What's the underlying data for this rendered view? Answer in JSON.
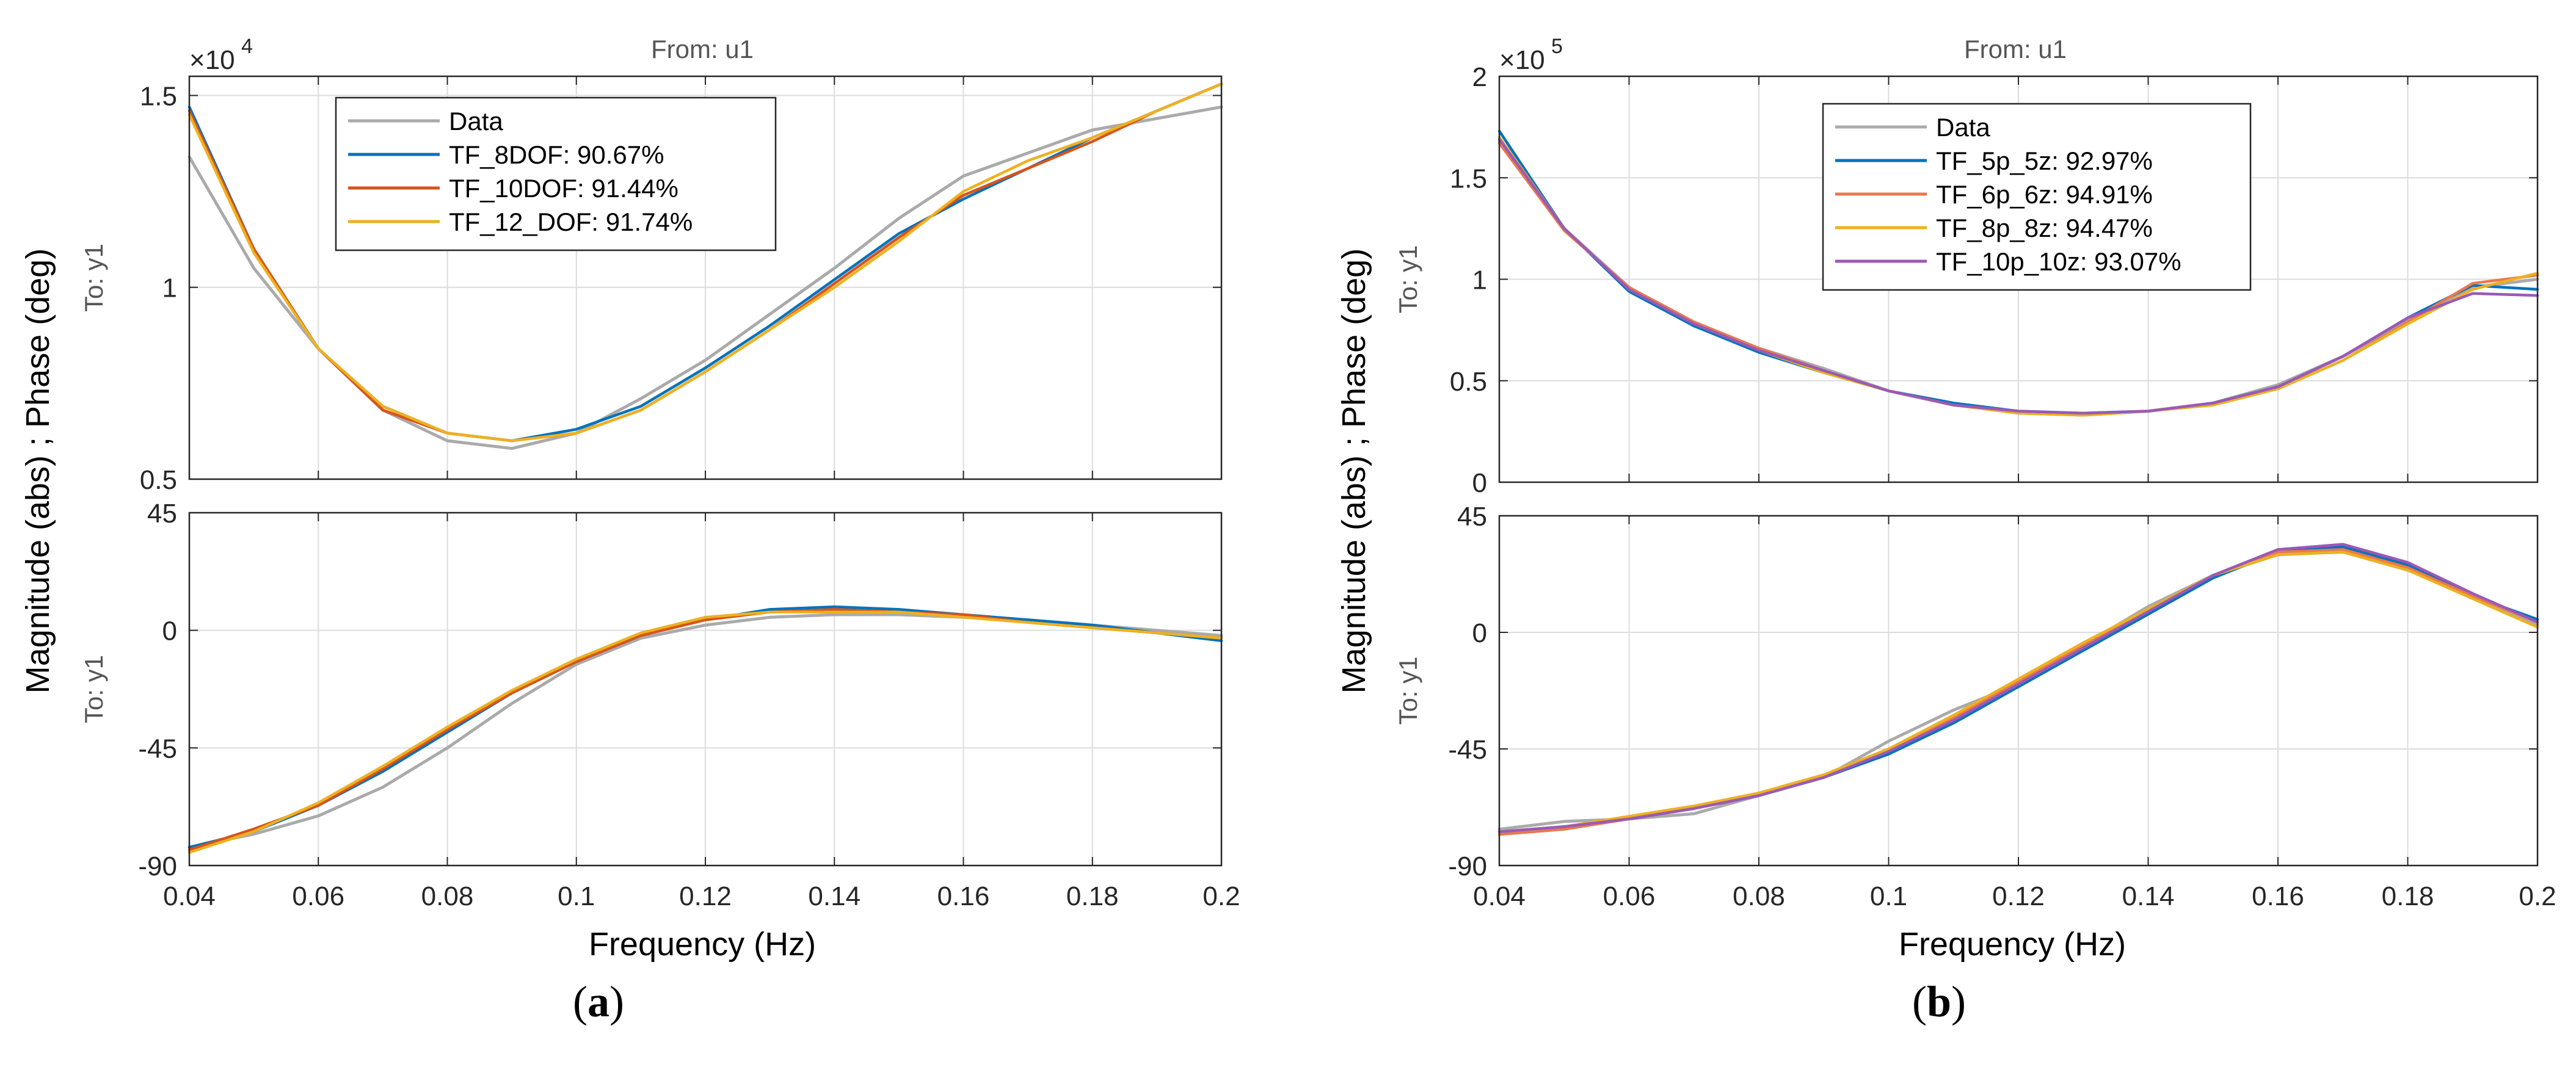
{
  "chart_data": [
    {
      "type": "line",
      "panel": "a",
      "from_label": "From: u1",
      "to_label": "To: y1",
      "ylabel": "Magnitude (abs) ; Phase (deg)",
      "xlabel": "Frequency  (Hz)",
      "xlim": [
        0.04,
        0.2
      ],
      "xticks": [
        0.04,
        0.06,
        0.08,
        0.1,
        0.12,
        0.14,
        0.16,
        0.18,
        0.2
      ],
      "xticklabels": [
        "0.04",
        "0.06",
        "0.08",
        "0.1",
        "0.12",
        "0.14",
        "0.16",
        "0.18",
        "0.2"
      ],
      "magnitude": {
        "exponent_label": "×10",
        "exponent_power": "4",
        "ylim": [
          0.5,
          1.55
        ],
        "yticks": [
          0.5,
          1,
          1.5
        ],
        "yticklabels": [
          "0.5",
          "1",
          "1.5"
        ],
        "x": [
          0.04,
          0.05,
          0.06,
          0.07,
          0.08,
          0.09,
          0.1,
          0.11,
          0.12,
          0.13,
          0.14,
          0.15,
          0.16,
          0.17,
          0.18,
          0.19,
          0.2
        ],
        "series": [
          {
            "name": "Data",
            "color": "#aaaaaa",
            "values": [
              1.34,
              1.05,
              0.84,
              0.68,
              0.6,
              0.58,
              0.62,
              0.71,
              0.81,
              0.93,
              1.05,
              1.18,
              1.29,
              1.35,
              1.41,
              1.44,
              1.47
            ]
          },
          {
            "name": "TF_8DOF: 90.67%",
            "color": "#0072bd",
            "values": [
              1.47,
              1.1,
              0.84,
              0.69,
              0.62,
              0.6,
              0.63,
              0.69,
              0.79,
              0.9,
              1.02,
              1.14,
              1.23,
              1.31,
              1.39,
              1.46,
              1.53
            ]
          },
          {
            "name": "TF_10DOF: 91.44%",
            "color": "#d95319",
            "values": [
              1.46,
              1.1,
              0.84,
              0.68,
              0.62,
              0.6,
              0.62,
              0.68,
              0.78,
              0.89,
              1.01,
              1.13,
              1.24,
              1.31,
              1.38,
              1.46,
              1.53
            ]
          },
          {
            "name": "TF_12_DOF: 91.74%",
            "color": "#edb120",
            "values": [
              1.45,
              1.09,
              0.84,
              0.69,
              0.62,
              0.6,
              0.62,
              0.68,
              0.78,
              0.89,
              1.0,
              1.12,
              1.25,
              1.33,
              1.39,
              1.46,
              1.53
            ]
          }
        ],
        "legend_entries": [
          "Data",
          "TF_8DOF: 90.67%",
          "TF_10DOF: 91.44%",
          "TF_12_DOF: 91.74%"
        ],
        "legend_loc": "top-left"
      },
      "phase": {
        "ylim": [
          -90,
          45
        ],
        "yticks": [
          -90,
          -45,
          0,
          45
        ],
        "yticklabels": [
          "-90",
          "-45",
          "0",
          "45"
        ],
        "x": [
          0.04,
          0.05,
          0.06,
          0.07,
          0.08,
          0.09,
          0.1,
          0.11,
          0.12,
          0.13,
          0.14,
          0.15,
          0.16,
          0.17,
          0.18,
          0.19,
          0.2
        ],
        "series": [
          {
            "name": "Data",
            "color": "#aaaaaa",
            "values": [
              -83,
              -78,
              -71,
              -60,
              -45,
              -28,
              -13,
              -3,
              2,
              5,
              6,
              6,
              5,
              4,
              2,
              0,
              -2
            ]
          },
          {
            "name": "TF_8DOF",
            "color": "#0072bd",
            "values": [
              -83,
              -77,
              -67,
              -54,
              -39,
              -24,
              -12,
              -2,
              4,
              8,
              9,
              8,
              6,
              4,
              2,
              -1,
              -4
            ]
          },
          {
            "name": "TF_10DOF",
            "color": "#d95319",
            "values": [
              -84,
              -76,
              -67,
              -53,
              -38,
              -24,
              -12,
              -2,
              4,
              7,
              8,
              7,
              6,
              3,
              1,
              -1,
              -3
            ]
          },
          {
            "name": "TF_12_DOF",
            "color": "#edb120",
            "values": [
              -85,
              -77,
              -66,
              -52,
              -37,
              -23,
              -11,
              -1,
              5,
              7,
              7,
              7,
              5,
              3,
              1,
              -1,
              -3
            ]
          }
        ]
      }
    },
    {
      "type": "line",
      "panel": "b",
      "from_label": "From: u1",
      "to_label": "To: y1",
      "ylabel": "Magnitude (abs) ; Phase (deg)",
      "xlabel": "Frequency  (Hz)",
      "xlim": [
        0.04,
        0.2
      ],
      "xticks": [
        0.04,
        0.06,
        0.08,
        0.1,
        0.12,
        0.14,
        0.16,
        0.18,
        0.2
      ],
      "xticklabels": [
        "0.04",
        "0.06",
        "0.08",
        "0.1",
        "0.12",
        "0.14",
        "0.16",
        "0.18",
        "0.2"
      ],
      "magnitude": {
        "exponent_label": "×10",
        "exponent_power": "5",
        "ylim": [
          0,
          2
        ],
        "yticks": [
          0,
          0.5,
          1,
          1.5,
          2
        ],
        "yticklabels": [
          "0",
          "0.5",
          "1",
          "1.5",
          "2"
        ],
        "x": [
          0.04,
          0.05,
          0.06,
          0.07,
          0.08,
          0.09,
          0.1,
          0.11,
          0.12,
          0.13,
          0.14,
          0.15,
          0.16,
          0.17,
          0.18,
          0.19,
          0.2
        ],
        "series": [
          {
            "name": "Data",
            "color": "#aaaaaa",
            "values": [
              1.68,
              1.25,
              0.96,
              0.78,
              0.66,
              0.56,
              0.45,
              0.38,
              0.35,
              0.34,
              0.35,
              0.39,
              0.48,
              0.62,
              0.8,
              0.96,
              1.0
            ]
          },
          {
            "name": "TF_5p_5z: 92.97%",
            "color": "#0072bd",
            "values": [
              1.73,
              1.25,
              0.94,
              0.77,
              0.64,
              0.54,
              0.45,
              0.39,
              0.35,
              0.34,
              0.35,
              0.39,
              0.47,
              0.62,
              0.81,
              0.97,
              0.95
            ]
          },
          {
            "name": "TF_6p_6z: 94.91%",
            "color": "#e8794e",
            "values": [
              1.67,
              1.24,
              0.96,
              0.79,
              0.66,
              0.55,
              0.45,
              0.38,
              0.34,
              0.33,
              0.35,
              0.39,
              0.46,
              0.6,
              0.79,
              0.98,
              1.02
            ]
          },
          {
            "name": "TF_8p_8z: 94.47%",
            "color": "#edb120",
            "values": [
              1.7,
              1.25,
              0.95,
              0.78,
              0.65,
              0.54,
              0.45,
              0.38,
              0.34,
              0.33,
              0.35,
              0.38,
              0.46,
              0.6,
              0.78,
              0.95,
              1.03
            ]
          },
          {
            "name": "TF_10p_10z: 93.07%",
            "color": "#9b59b6",
            "values": [
              1.69,
              1.25,
              0.95,
              0.78,
              0.65,
              0.55,
              0.45,
              0.38,
              0.35,
              0.34,
              0.35,
              0.39,
              0.47,
              0.62,
              0.81,
              0.93,
              0.92
            ]
          }
        ],
        "legend_entries": [
          "Data",
          "TF_5p_5z: 92.97%",
          "TF_6p_6z: 94.91%",
          "TF_8p_8z: 94.47%",
          "TF_10p_10z: 93.07%"
        ],
        "legend_loc": "top-center"
      },
      "phase": {
        "ylim": [
          -90,
          45
        ],
        "yticks": [
          -90,
          -45,
          0,
          45
        ],
        "yticklabels": [
          "-90",
          "-45",
          "0",
          "45"
        ],
        "x": [
          0.04,
          0.05,
          0.06,
          0.07,
          0.08,
          0.09,
          0.1,
          0.11,
          0.12,
          0.13,
          0.14,
          0.15,
          0.16,
          0.17,
          0.18,
          0.19,
          0.2
        ],
        "series": [
          {
            "name": "Data",
            "color": "#aaaaaa",
            "values": [
              -76,
              -73,
              -72,
              -70,
              -63,
              -56,
              -42,
              -30,
              -20,
              -5,
              10,
              22,
              30,
              31,
              24,
              14,
              3
            ]
          },
          {
            "name": "TF_5p_5z",
            "color": "#0072bd",
            "values": [
              -77,
              -75,
              -72,
              -68,
              -63,
              -56,
              -47,
              -35,
              -21,
              -7,
              7,
              21,
              31,
              33,
              26,
              14,
              5
            ]
          },
          {
            "name": "TF_6p_6z",
            "color": "#e8794e",
            "values": [
              -78,
              -76,
              -72,
              -68,
              -62,
              -55,
              -45,
              -33,
              -19,
              -5,
              9,
              22,
              31,
              32,
              25,
              14,
              4
            ]
          },
          {
            "name": "TF_8p_8z",
            "color": "#edb120",
            "values": [
              -77,
              -75,
              -71,
              -67,
              -62,
              -55,
              -45,
              -32,
              -18,
              -4,
              9,
              22,
              30,
              31,
              24,
              13,
              2
            ]
          },
          {
            "name": "TF_10p_10z",
            "color": "#9b59b6",
            "values": [
              -77,
              -75,
              -72,
              -68,
              -63,
              -56,
              -46,
              -34,
              -20,
              -6,
              8,
              22,
              32,
              34,
              27,
              15,
              4
            ]
          }
        ]
      }
    }
  ],
  "panel_labels": [
    {
      "open": "(",
      "letter": "a",
      "close": ")"
    },
    {
      "open": "(",
      "letter": "b",
      "close": ")"
    }
  ]
}
